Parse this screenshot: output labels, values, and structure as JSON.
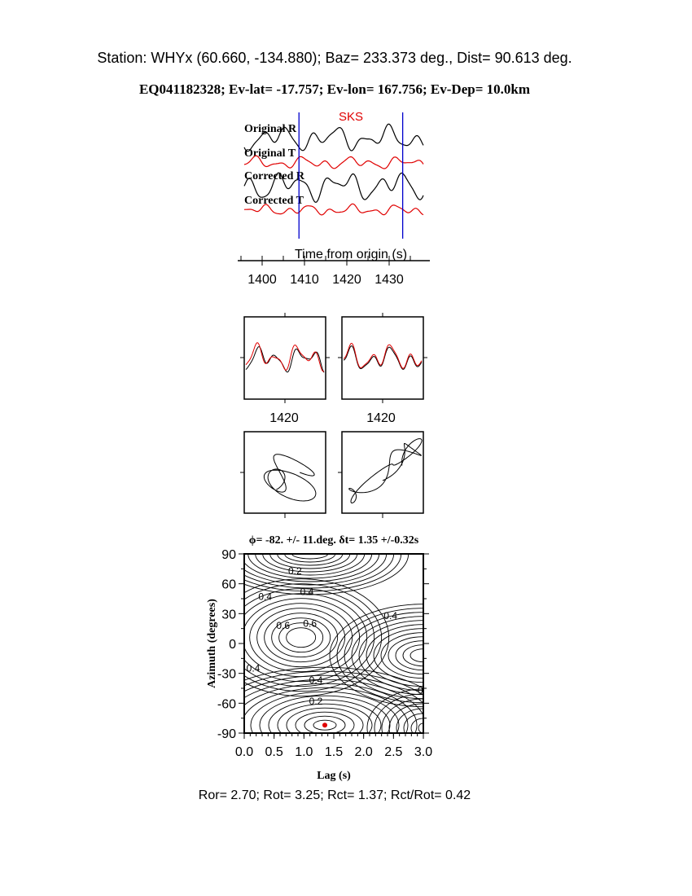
{
  "header": {
    "station_line": "Station: WHYx (60.660, -134.880); Baz=  233.373 deg., Dist=   90.613 deg.",
    "event_line": "EQ041182328; Ev-lat= -17.757; Ev-lon= 167.756; Ev-Dep= 10.0km"
  },
  "colors": {
    "black": "#000000",
    "red": "#e00000",
    "blue": "#0000cc"
  },
  "chart_data": [
    {
      "type": "line",
      "title": "SKS",
      "xlabel": "Time from origin (s)",
      "xticks": [
        "1400",
        "1410",
        "1420",
        "1430"
      ],
      "window_markers_s": [
        1408.7,
        1433.2
      ],
      "series": [
        {
          "name": "Original R",
          "color": "#000000"
        },
        {
          "name": "Original T",
          "color": "#e00000"
        },
        {
          "name": "Corrected R",
          "color": "#000000"
        },
        {
          "name": "Corrected T",
          "color": "#e00000"
        }
      ]
    },
    {
      "type": "line",
      "panels": [
        "waveform-original",
        "waveform-corrected"
      ],
      "xticks": [
        "1420",
        "1420"
      ]
    },
    {
      "type": "scatter",
      "panels": [
        "particle-motion-original",
        "particle-motion-corrected"
      ]
    },
    {
      "type": "heatmap",
      "title": "ϕ= -82. +/- 11.deg. δt= 1.35 +/-0.32s",
      "xlabel": "Lag (s)",
      "ylabel": "Azimuth (degrees)",
      "xlim": [
        0.0,
        3.0
      ],
      "ylim": [
        -90,
        90
      ],
      "xticks": [
        "0.0",
        "0.5",
        "1.0",
        "1.5",
        "2.0",
        "2.5",
        "3.0"
      ],
      "yticks": [
        "90",
        "60",
        "30",
        "0",
        "-30",
        "-60",
        "-90"
      ],
      "contour_labels": [
        "0.2",
        "0.4",
        "0.4",
        "0.6",
        "0.6",
        "0.4",
        "0.4",
        "0.4",
        "0.2",
        "0"
      ],
      "best_fit": {
        "lag_s": 1.35,
        "azimuth_deg": -82
      },
      "best_fit_color": "#e00000"
    }
  ],
  "footer": {
    "ratios_line": "Ror= 2.70; Rot= 3.25; Rct= 1.37; Rct/Rot= 0.42"
  }
}
